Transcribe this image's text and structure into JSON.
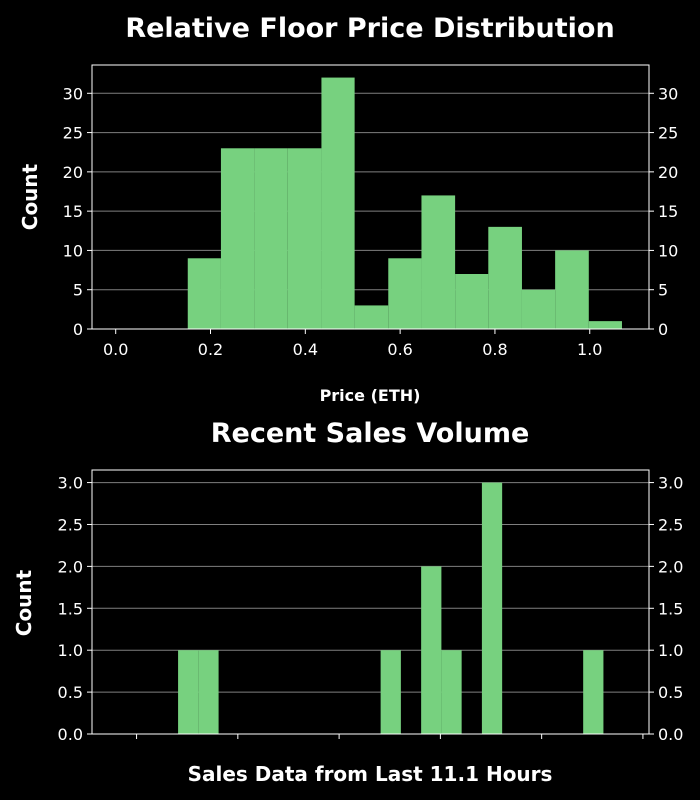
{
  "chart_data": [
    {
      "type": "bar",
      "title": "Relative Floor Price Distribution",
      "xlabel": "Price (ETH)",
      "ylabel": "Count",
      "xlim": [
        -0.05,
        1.125
      ],
      "ylim": [
        0,
        33.6
      ],
      "x_ticks": [
        0.0,
        0.2,
        0.4,
        0.6,
        0.8,
        1.0
      ],
      "x_tick_labels": [
        "0.0",
        "0.2",
        "0.4",
        "0.6",
        "0.8",
        "1.0"
      ],
      "y_ticks": [
        0,
        5,
        10,
        15,
        20,
        25,
        30
      ],
      "y_tick_labels": [
        "0",
        "5",
        "10",
        "15",
        "20",
        "25",
        "30"
      ],
      "grid": "y",
      "bar_color": "#77d17f",
      "bins": [
        {
          "x0": 0.152,
          "x1": 0.222,
          "value": 9
        },
        {
          "x0": 0.222,
          "x1": 0.293,
          "value": 23
        },
        {
          "x0": 0.293,
          "x1": 0.363,
          "value": 23
        },
        {
          "x0": 0.363,
          "x1": 0.434,
          "value": 23
        },
        {
          "x0": 0.434,
          "x1": 0.504,
          "value": 32
        },
        {
          "x0": 0.504,
          "x1": 0.575,
          "value": 3
        },
        {
          "x0": 0.575,
          "x1": 0.645,
          "value": 9
        },
        {
          "x0": 0.645,
          "x1": 0.716,
          "value": 17
        },
        {
          "x0": 0.716,
          "x1": 0.786,
          "value": 7
        },
        {
          "x0": 0.786,
          "x1": 0.857,
          "value": 13
        },
        {
          "x0": 0.857,
          "x1": 0.927,
          "value": 5
        },
        {
          "x0": 0.927,
          "x1": 0.998,
          "value": 10
        },
        {
          "x0": 0.998,
          "x1": 1.068,
          "value": 1
        }
      ]
    },
    {
      "type": "bar",
      "title": "Recent Sales Volume",
      "xlabel": "Sales Data from Last 11.1 Hours",
      "ylabel": "Count",
      "xlim": [
        0,
        27.5
      ],
      "ylim": [
        0,
        3.15
      ],
      "x_ticks": [
        2.2,
        7.2,
        12.2,
        17.2,
        22.2,
        27.2
      ],
      "y_ticks": [
        0.0,
        0.5,
        1.0,
        1.5,
        2.0,
        2.5,
        3.0
      ],
      "y_tick_labels": [
        "0.0",
        "0.5",
        "1.0",
        "1.5",
        "2.0",
        "2.5",
        "3.0"
      ],
      "grid": "y",
      "bar_color": "#77d17f",
      "bins": [
        {
          "x0": 4.25,
          "x1": 5.25,
          "value": 1
        },
        {
          "x0": 5.25,
          "x1": 6.25,
          "value": 1
        },
        {
          "x0": 14.25,
          "x1": 15.25,
          "value": 1
        },
        {
          "x0": 16.25,
          "x1": 17.25,
          "value": 2
        },
        {
          "x0": 17.25,
          "x1": 18.25,
          "value": 1
        },
        {
          "x0": 19.25,
          "x1": 20.25,
          "value": 3
        },
        {
          "x0": 24.25,
          "x1": 25.25,
          "value": 1
        }
      ]
    }
  ]
}
